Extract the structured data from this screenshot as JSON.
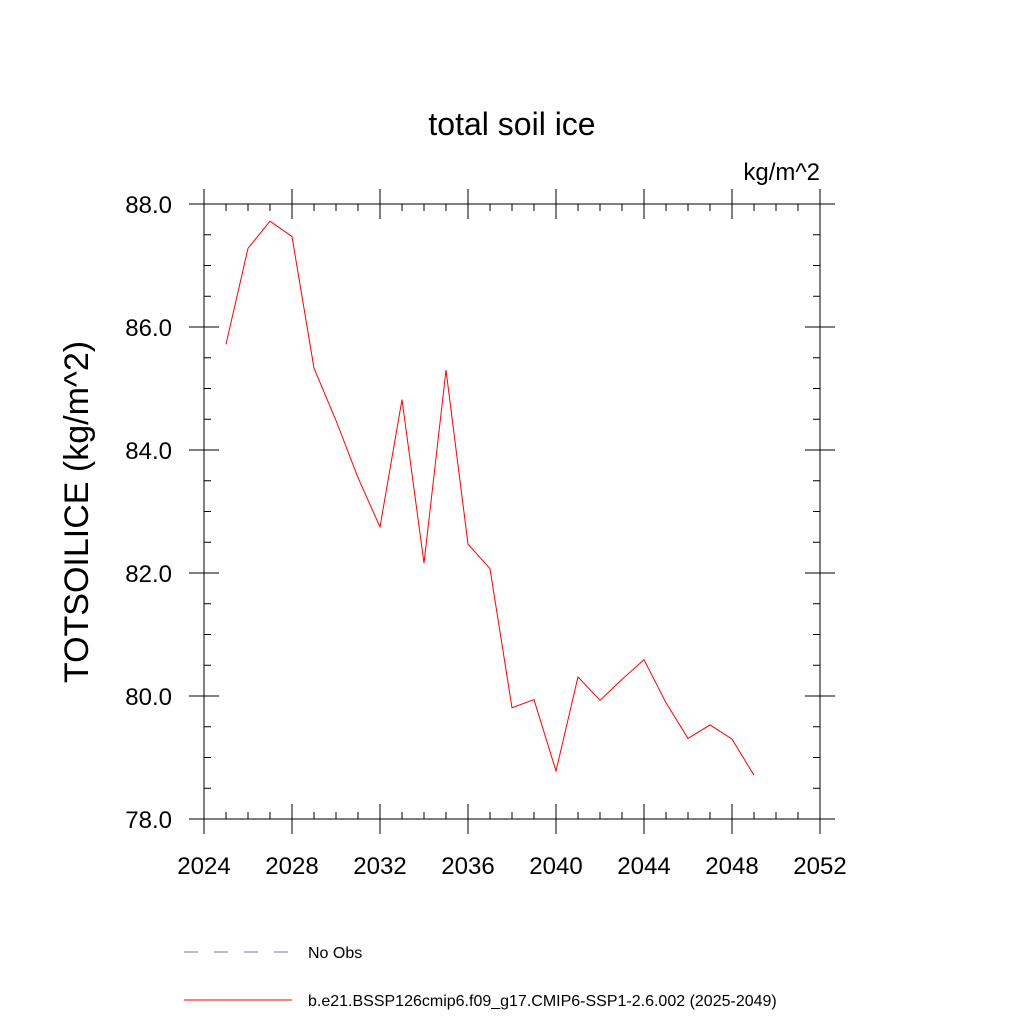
{
  "chart_data": {
    "type": "line",
    "title": "total soil ice",
    "units": "kg/m^2",
    "ylabel": "TOTSOILICE  (kg/m^2)",
    "xlabel": "",
    "xlim": [
      2024,
      2052
    ],
    "ylim": [
      78.0,
      88.0
    ],
    "x_ticks": [
      2024,
      2028,
      2032,
      2036,
      2040,
      2044,
      2048,
      2052
    ],
    "x_tick_labels": [
      "2024",
      "2028",
      "2032",
      "2036",
      "2040",
      "2044",
      "2048",
      "2052"
    ],
    "x_minor_step": 1,
    "y_ticks": [
      78.0,
      80.0,
      82.0,
      84.0,
      86.0,
      88.0
    ],
    "y_tick_labels": [
      "78.0",
      "80.0",
      "82.0",
      "84.0",
      "86.0",
      "88.0"
    ],
    "y_minor_step": 0.5,
    "grid": false,
    "legend_position": "bottom",
    "series": [
      {
        "name": "b.e21.BSSP126cmip6.f09_g17.CMIP6-SSP1-2.6.002 (2025-2049)",
        "color": "#ff0000",
        "style": "solid",
        "x": [
          2025,
          2026,
          2027,
          2028,
          2029,
          2030,
          2031,
          2032,
          2033,
          2034,
          2035,
          2036,
          2037,
          2038,
          2039,
          2040,
          2041,
          2042,
          2043,
          2044,
          2045,
          2046,
          2047,
          2048,
          2049
        ],
        "y": [
          85.72,
          87.28,
          87.72,
          87.47,
          85.33,
          84.48,
          83.55,
          82.75,
          84.82,
          82.16,
          85.3,
          82.47,
          82.07,
          79.81,
          79.94,
          78.78,
          80.31,
          79.93,
          80.27,
          80.59,
          79.89,
          79.31,
          79.53,
          79.3,
          78.71
        ]
      }
    ],
    "legend": [
      {
        "label": "No Obs",
        "color": "#7b6fbf",
        "style": "dashed"
      },
      {
        "label": "b.e21.BSSP126cmip6.f09_g17.CMIP6-SSP1-2.6.002 (2025-2049)",
        "color": "#ff0000",
        "style": "solid"
      }
    ]
  }
}
